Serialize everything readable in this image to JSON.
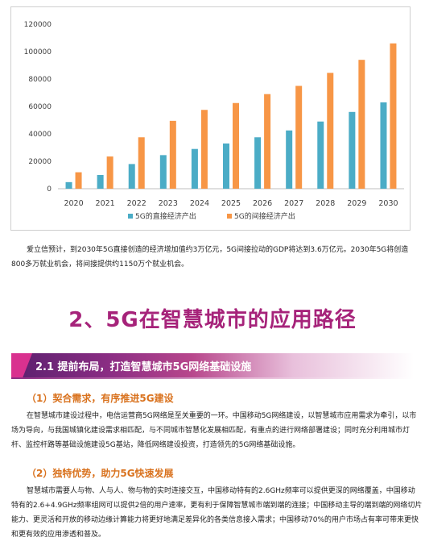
{
  "chart_data": {
    "type": "bar",
    "categories": [
      "2020",
      "2021",
      "2022",
      "2023",
      "2024",
      "2025",
      "2026",
      "2027",
      "2028",
      "2029",
      "2030"
    ],
    "series": [
      {
        "name": "5G的直接经济产出",
        "color": "#4bacc6",
        "values": [
          4800,
          10000,
          18000,
          24500,
          29000,
          33000,
          37500,
          42500,
          49000,
          56000,
          63000
        ]
      },
      {
        "name": "5G的间接经济产出",
        "color": "#f79646",
        "values": [
          12000,
          23500,
          37500,
          49500,
          57500,
          62500,
          69000,
          75000,
          84500,
          94000,
          106000
        ]
      }
    ],
    "ylim": [
      0,
      120000
    ],
    "yticks": [
      "0",
      "20000",
      "40000",
      "60000",
      "80000",
      "100000",
      "120000"
    ],
    "grid": false,
    "legend": "bottom"
  },
  "intro_paragraph": {
    "line1": "爱立信预计，到2030年5G直接创造的经济增加值约3万亿元，5G间接拉动的GDP将达到3.6万亿元。2030年5G将创造",
    "line2": "800多万就业机会，将间接提供约1150万个就业机会。"
  },
  "section_title": "2、5G在智慧城市的应用路径",
  "banner_title": "2.1 提前布局，打造智慧城市5G网络基础设施",
  "subsection1": {
    "title": "（1）契合需求，有序推进5G建设",
    "lines": [
      "在智慧城市建设过程中，电信运营商5G网络是至关重要的一环。中国移动5G网络建设，以智慧城市应用需求为牵引，以市",
      "场为导向，与我国城镇化建设需求相匹配，与不同城市智慧化发展相匹配，有重点的进行网络部署建设；同时充分利用城市灯",
      "杆、监控杆路等基础设施建设5G基站，降低网络建设投资，打造领先的5G网络基础设施。"
    ]
  },
  "subsection2": {
    "title": "（2）独特优势，助力5G快速发展",
    "lines": [
      "智慧城市需要人与物、人与人、物与物的实时连接交互，中国移动特有的2.6GHz频率可以提供更深的网络覆盖，中国移动",
      "特有的2.6+4.9GHz频率组网可以提供2倍的用户速率，更有利于保障智慧城市端到端的连接；中国移动主导的端到端的网络切片",
      "能力、更灵活和开放的移动边缘计算能力将更好地满足差异化的各类信息接入需求；中国移动70%的用户市场占有率可带来更快",
      "和更有效的应用渗透和普及。"
    ]
  }
}
